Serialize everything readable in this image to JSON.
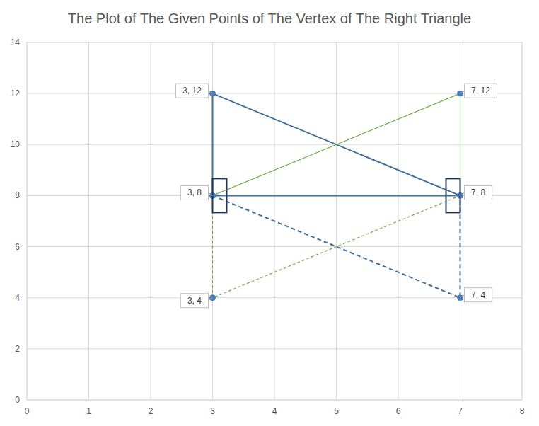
{
  "chart_data": {
    "type": "scatter",
    "title": "The Plot of The Given Points of The Vertex of The Right Triangle",
    "xlim": [
      0,
      8
    ],
    "xticks": [
      0,
      1,
      2,
      3,
      4,
      5,
      6,
      7,
      8
    ],
    "ylim": [
      0,
      14
    ],
    "yticks": [
      0,
      2,
      4,
      6,
      8,
      10,
      12,
      14
    ],
    "grid": true,
    "series": [
      {
        "type": "line",
        "color": "#41719c",
        "line_style": "solid",
        "marker": "none",
        "x": [
          3,
          3,
          7,
          3
        ],
        "values": [
          12,
          8,
          8,
          12
        ]
      },
      {
        "type": "line",
        "color": "#41719c",
        "line_style": "dashed",
        "marker": "none",
        "x": [
          3,
          7,
          7
        ],
        "values": [
          8,
          4,
          8
        ]
      },
      {
        "type": "line",
        "color": "#70ad47",
        "line_style": "solid",
        "marker": "none",
        "x": [
          3,
          7,
          7
        ],
        "values": [
          8,
          12,
          8
        ]
      },
      {
        "type": "line",
        "color": "#70ad47",
        "line_style": "dashed",
        "marker": "none",
        "x": [
          7,
          3,
          3
        ],
        "values": [
          8,
          4,
          8
        ]
      },
      {
        "type": "scatter",
        "color": "#4a7ebb",
        "marker": "circle",
        "data_labels": true,
        "x": [
          3,
          7,
          3,
          7,
          3,
          7
        ],
        "values": [
          12,
          12,
          8,
          8,
          4,
          4
        ],
        "value_labels": [
          "3, 12",
          "7, 12",
          "3, 8",
          "7, 8",
          "3, 4",
          "7, 4"
        ]
      }
    ]
  }
}
